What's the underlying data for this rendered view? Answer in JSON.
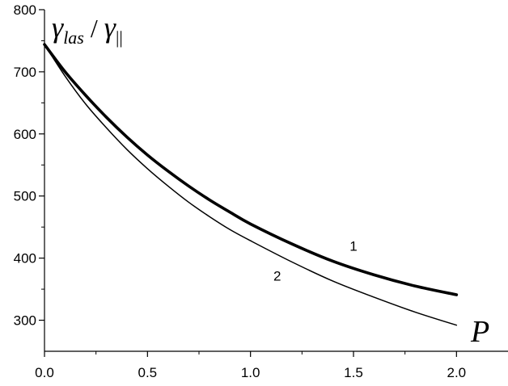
{
  "chart_data": {
    "type": "line",
    "title": "",
    "ylabel": {
      "main": "γ",
      "sub": "las",
      "separator": "/",
      "main2": "γ",
      "sub2": "||"
    },
    "xlabel": "P",
    "xlim": [
      0.0,
      2.25
    ],
    "ylim": [
      250,
      800
    ],
    "x_ticks": [
      "0.0",
      "0.5",
      "1.0",
      "1.5",
      "2.0"
    ],
    "x_tick_values": [
      0.0,
      0.5,
      1.0,
      1.5,
      2.0
    ],
    "y_ticks": [
      "300",
      "400",
      "500",
      "600",
      "700",
      "800"
    ],
    "y_tick_values": [
      300,
      400,
      500,
      600,
      700,
      800
    ],
    "grid": false,
    "legend": "none",
    "series": [
      {
        "label": "1",
        "label_at": [
          1.5,
          412
        ],
        "line_weight": "bold",
        "color": "#000000",
        "x": [
          0.0,
          0.1,
          0.2,
          0.3,
          0.4,
          0.5,
          0.6,
          0.7,
          0.8,
          0.9,
          1.0,
          1.2,
          1.4,
          1.6,
          1.8,
          2.0
        ],
        "y": [
          744,
          700,
          662,
          627,
          595,
          566,
          540,
          516,
          494,
          474,
          455,
          423,
          395,
          373,
          355,
          341
        ]
      },
      {
        "label": "2",
        "label_at": [
          1.13,
          364
        ],
        "line_weight": "thin",
        "color": "#000000",
        "x": [
          0.0,
          0.1,
          0.2,
          0.3,
          0.4,
          0.5,
          0.6,
          0.7,
          0.8,
          0.9,
          1.0,
          1.2,
          1.4,
          1.6,
          1.8,
          2.0
        ],
        "y": [
          744,
          693,
          648,
          610,
          575,
          544,
          516,
          490,
          467,
          446,
          428,
          394,
          363,
          337,
          313,
          292
        ]
      }
    ]
  }
}
